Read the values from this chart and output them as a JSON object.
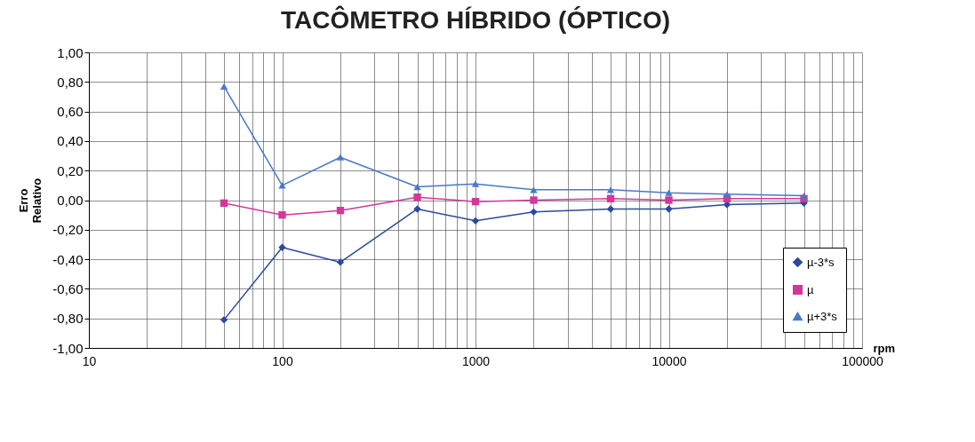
{
  "chart_data": {
    "type": "line",
    "title": "TACÔMETRO HÍBRIDO (ÓPTICO)",
    "xlabel": "rpm",
    "ylabel": "Erro Relativo",
    "x": [
      50,
      100,
      200,
      500,
      1000,
      2000,
      5000,
      10000,
      20000,
      50000
    ],
    "series": [
      {
        "name": "µ-3*s",
        "color": "#2b4a9c",
        "marker": "diamond",
        "values": [
          -0.81,
          -0.32,
          -0.42,
          -0.06,
          -0.14,
          -0.08,
          -0.06,
          -0.06,
          -0.03,
          -0.02
        ]
      },
      {
        "name": "µ",
        "color": "#d2379b",
        "marker": "square",
        "values": [
          -0.02,
          -0.1,
          -0.07,
          0.02,
          -0.01,
          0,
          0.01,
          0,
          0.01,
          0.01
        ]
      },
      {
        "name": "µ+3*s",
        "color": "#4a78cc",
        "marker": "triangle",
        "values": [
          0.77,
          0.1,
          0.29,
          0.09,
          0.11,
          0.07,
          0.07,
          0.05,
          0.04,
          0.03
        ]
      }
    ],
    "log": "x",
    "xlim": [
      10,
      100000
    ],
    "xticks": [
      10,
      100,
      1000,
      10000,
      100000
    ],
    "ylim": [
      -1,
      1
    ],
    "yticks": [
      {
        "value": -1,
        "label": "-1,00"
      },
      {
        "value": -0.8,
        "label": "-0,80"
      },
      {
        "value": -0.6,
        "label": "-0,60"
      },
      {
        "value": -0.4,
        "label": "-0,40"
      },
      {
        "value": -0.2,
        "label": "-0,20"
      },
      {
        "value": 0,
        "label": "0,00"
      },
      {
        "value": 0.2,
        "label": "0,20"
      },
      {
        "value": 0.4,
        "label": "0,40"
      },
      {
        "value": 0.6,
        "label": "0,60"
      },
      {
        "value": 0.8,
        "label": "0,80"
      },
      {
        "value": 1,
        "label": "1,00"
      }
    ],
    "grid": true,
    "legend": "bottom right",
    "line_style": "solid"
  }
}
